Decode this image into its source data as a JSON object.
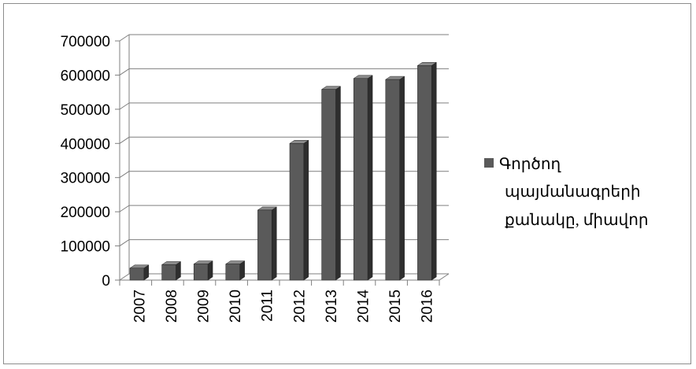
{
  "chart_data": {
    "type": "bar",
    "categories": [
      "2007",
      "2008",
      "2009",
      "2010",
      "2011",
      "2012",
      "2013",
      "2014",
      "2015",
      "2016"
    ],
    "series": [
      {
        "name": "Գործող պայմանագրերի քանակը, միավոր",
        "values": [
          35000,
          45000,
          47000,
          47000,
          205000,
          400000,
          558000,
          590000,
          587000,
          628000
        ]
      }
    ],
    "y_ticks": [
      "0",
      "100000",
      "200000",
      "300000",
      "400000",
      "500000",
      "600000",
      "700000"
    ],
    "ylim": [
      0,
      700000
    ],
    "grid": true,
    "legend_position": "right",
    "legend_lines": [
      "Գործող",
      "պայմանագրերի",
      "քանակը, միավոր"
    ],
    "colors": {
      "bar_front": "#5a5a5a",
      "bar_side": "#2e2e2e",
      "bar_top": "#8a8a8a",
      "grid": "#7f7f7f"
    }
  }
}
